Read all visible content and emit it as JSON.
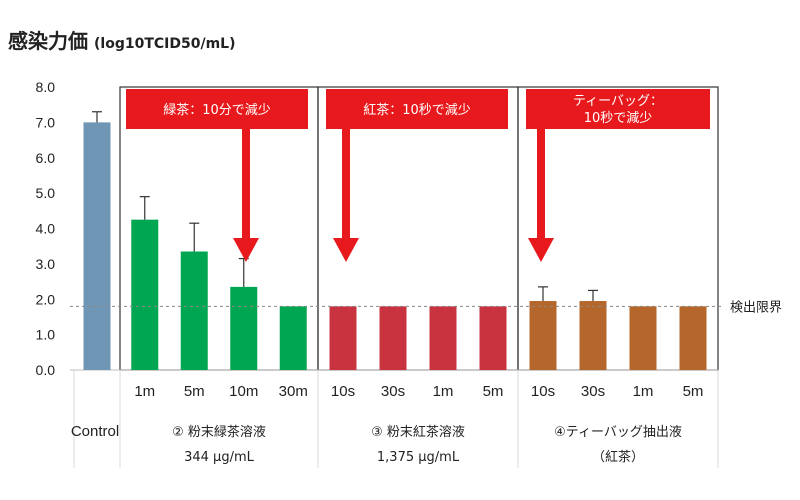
{
  "chart_data": {
    "type": "bar",
    "title": "感染力価",
    "title_unit": "(log10TCID50/mL)",
    "ylim": [
      0,
      8
    ],
    "yticks": [
      "0.0",
      "1.0",
      "2.0",
      "3.0",
      "4.0",
      "5.0",
      "6.0",
      "7.0",
      "8.0"
    ],
    "grid": false,
    "detection_limit": {
      "value": 1.8,
      "label": "検出限界"
    },
    "groups": [
      {
        "name": "Control",
        "lines": [
          "Control"
        ],
        "color": "#7096b6",
        "bars": [
          {
            "label": "",
            "value": 7.0,
            "error": 0.3
          }
        ]
      },
      {
        "name": "粉末緑茶溶液",
        "lines": [
          "② 粉末緑茶溶液",
          "344 µg/mL"
        ],
        "color": "#00a651",
        "callout": [
          "緑茶：10分で減少"
        ],
        "bars": [
          {
            "label": "1m",
            "value": 4.25,
            "error": 0.65
          },
          {
            "label": "5m",
            "value": 3.35,
            "error": 0.8
          },
          {
            "label": "10m",
            "value": 2.35,
            "error": 0.8
          },
          {
            "label": "30m",
            "value": 1.8,
            "error": 0
          }
        ]
      },
      {
        "name": "粉末紅茶溶液",
        "lines": [
          "③ 粉末紅茶溶液",
          "1,375 µg/mL"
        ],
        "color": "#c8333f",
        "callout": [
          "紅茶：10秒で減少"
        ],
        "bars": [
          {
            "label": "10s",
            "value": 1.8,
            "error": 0
          },
          {
            "label": "30s",
            "value": 1.8,
            "error": 0
          },
          {
            "label": "1m",
            "value": 1.8,
            "error": 0
          },
          {
            "label": "5m",
            "value": 1.8,
            "error": 0
          }
        ]
      },
      {
        "name": "ティーバッグ抽出液",
        "lines": [
          "④ティーバッグ抽出液",
          "（紅茶）"
        ],
        "color": "#b5672b",
        "callout": [
          "ティーバッグ：",
          "10秒で減少"
        ],
        "bars": [
          {
            "label": "10s",
            "value": 1.95,
            "error": 0.4
          },
          {
            "label": "30s",
            "value": 1.95,
            "error": 0.3
          },
          {
            "label": "1m",
            "value": 1.8,
            "error": 0
          },
          {
            "label": "5m",
            "value": 1.8,
            "error": 0
          }
        ]
      }
    ]
  }
}
